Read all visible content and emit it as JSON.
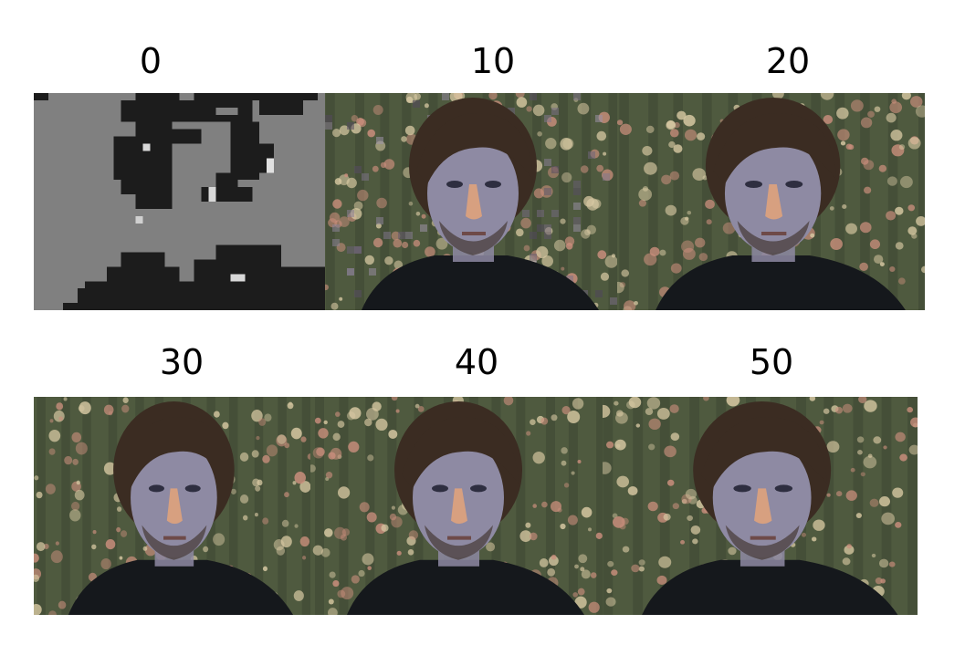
{
  "panels": [
    {
      "label": "0",
      "style": "quantized"
    },
    {
      "label": "10",
      "style": "noisy"
    },
    {
      "label": "20",
      "style": "photo"
    },
    {
      "label": "30",
      "style": "photo"
    },
    {
      "label": "40",
      "style": "photo"
    },
    {
      "label": "50",
      "style": "photo"
    }
  ],
  "colors": {
    "background": "#ffffff",
    "quant_light": "#808080",
    "quant_dark": "#1c1c1c",
    "curtain_base": "#4f5a3f",
    "curtain_dark": "#3a4330",
    "flower_pink": "#c98e7c",
    "flower_cream": "#d8c9a3",
    "hair": "#3b2c22",
    "skin": "#8e8aa3",
    "nose": "#d7a080",
    "shirt": "#15181c"
  }
}
